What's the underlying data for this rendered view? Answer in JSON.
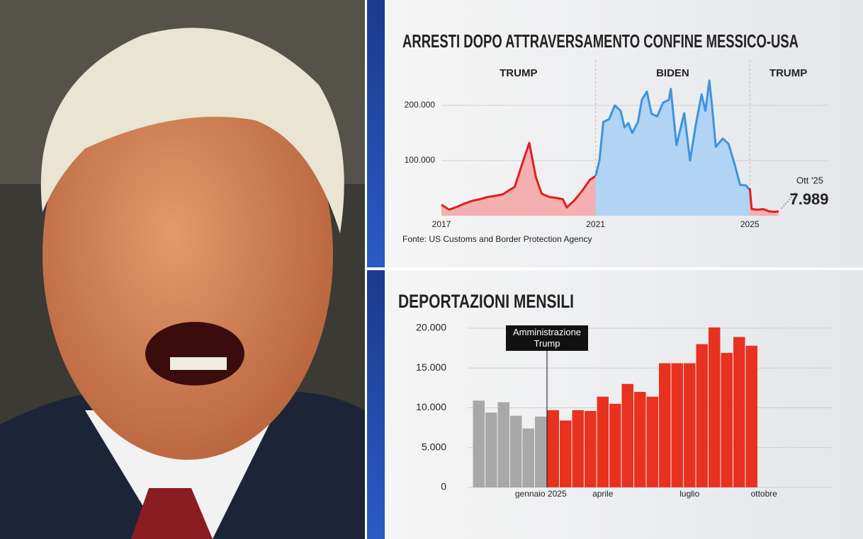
{
  "chart_data": [
    {
      "type": "line",
      "title": "ARRESTI DOPO ATTRAVERSAMENTO CONFINE MESSICO-USA",
      "source": "Fonte: US Customs and Border Protection Agency",
      "xlim": [
        2017,
        2027
      ],
      "xticks": [
        2017,
        2021,
        2025
      ],
      "ylim": [
        0,
        250000
      ],
      "yticks": [
        {
          "value": 100000,
          "label": "100.000"
        },
        {
          "value": 200000,
          "label": "200.000"
        }
      ],
      "grid": true,
      "area": true,
      "series": [
        {
          "name": "TRUMP",
          "color": "#e01e1e",
          "fill": "#f4b0b0",
          "x": [
            2017.0,
            2017.2,
            2017.4,
            2017.6,
            2017.8,
            2018.0,
            2018.2,
            2018.4,
            2018.6,
            2018.75,
            2018.9,
            2019.1,
            2019.28,
            2019.45,
            2019.6,
            2019.8,
            2020.0,
            2020.15,
            2020.25,
            2020.45,
            2020.65,
            2020.85,
            2021.0
          ],
          "values": [
            20000,
            11000,
            16000,
            22000,
            27000,
            30000,
            34000,
            36000,
            39000,
            46000,
            52000,
            95000,
            132000,
            70000,
            40000,
            34000,
            32000,
            30000,
            15000,
            28000,
            45000,
            65000,
            72000
          ]
        },
        {
          "name": "BIDEN",
          "color": "#3d93e0",
          "fill": "#b1d3f4",
          "x": [
            2021.0,
            2021.1,
            2021.2,
            2021.35,
            2021.5,
            2021.65,
            2021.75,
            2021.85,
            2021.95,
            2022.1,
            2022.2,
            2022.33,
            2022.45,
            2022.6,
            2022.75,
            2022.9,
            2022.95,
            2023.1,
            2023.3,
            2023.45,
            2023.6,
            2023.75,
            2023.85,
            2023.95,
            2024.02,
            2024.12,
            2024.3,
            2024.45,
            2024.6,
            2024.75,
            2024.9,
            2025.0
          ],
          "values": [
            72000,
            100000,
            170000,
            175000,
            200000,
            190000,
            160000,
            168000,
            150000,
            170000,
            210000,
            225000,
            185000,
            180000,
            205000,
            210000,
            230000,
            128000,
            186000,
            100000,
            165000,
            220000,
            190000,
            245000,
            200000,
            125000,
            140000,
            130000,
            95000,
            56000,
            55000,
            47000
          ]
        },
        {
          "name": "TRUMP",
          "color": "#e01e1e",
          "fill": "#f4b0b0",
          "x": [
            2025.0,
            2025.05,
            2025.2,
            2025.35,
            2025.5,
            2025.65,
            2025.75
          ],
          "values": [
            50000,
            12000,
            11000,
            12000,
            8000,
            7000,
            7989
          ],
          "value_labels": [
            null,
            null,
            null,
            null,
            null,
            null,
            "7.989"
          ]
        }
      ],
      "annotation": "Ott '25"
    },
    {
      "type": "bar",
      "title": "DEPORTAZIONI MENSILI",
      "categories": [
        null,
        null,
        null,
        null,
        null,
        "gennaio 2025",
        null,
        null,
        null,
        null,
        "aprile",
        null,
        null,
        null,
        null,
        null,
        null,
        "luglio",
        null,
        null,
        null,
        null,
        null,
        "ottobre"
      ],
      "values": [
        10900,
        9400,
        10700,
        9000,
        7400,
        8900,
        9700,
        8400,
        9700,
        9600,
        11400,
        10500,
        13000,
        12000,
        11400,
        15600,
        15600,
        15600,
        18000,
        20100,
        16900,
        18900,
        17800,
        null
      ],
      "colors": [
        "#a8a8a8",
        "#a8a8a8",
        "#a8a8a8",
        "#a8a8a8",
        "#a8a8a8",
        "#a8a8a8",
        "#e8321f",
        "#e8321f",
        "#e8321f",
        "#e8321f",
        "#e8321f",
        "#e8321f",
        "#e8321f",
        "#e8321f",
        "#e8321f",
        "#e8321f",
        "#e8321f",
        "#e8321f",
        "#e8321f",
        "#e8321f",
        "#e8321f",
        "#e8321f",
        "#e8321f",
        null
      ],
      "ylim": [
        0,
        20000
      ],
      "yticks": [
        0,
        {
          "value": 5000,
          "label": "5.000"
        },
        {
          "value": 10000,
          "label": "10.000"
        },
        {
          "value": 15000,
          "label": "15.000"
        },
        {
          "value": 20000,
          "label": "20.000"
        }
      ],
      "grid": true,
      "annotation": "Amministrazione Trump"
    }
  ]
}
